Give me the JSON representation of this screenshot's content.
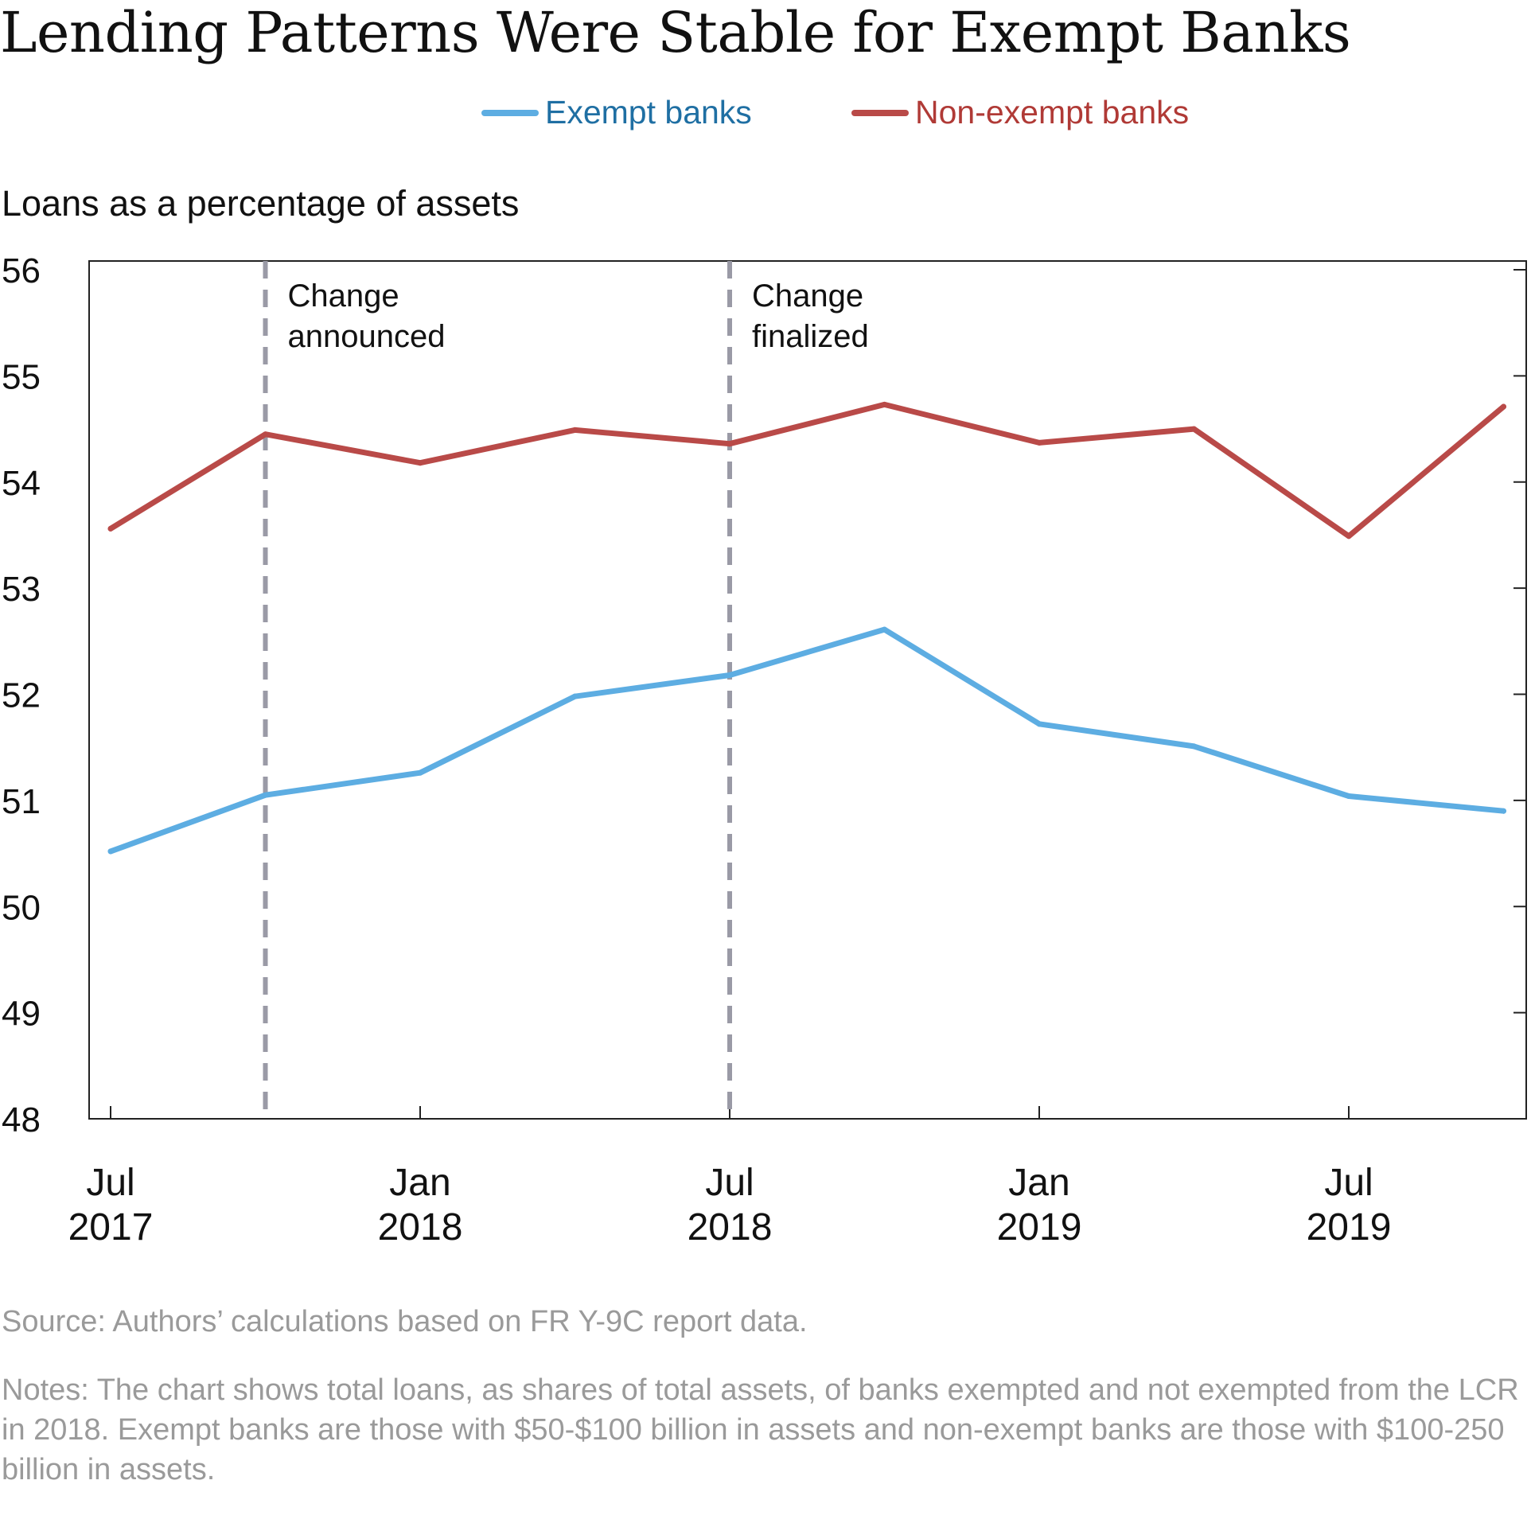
{
  "title": "Lending Patterns Were Stable for Exempt Banks",
  "source": "Source: Authors’ calculations based on FR Y-9C report data.",
  "notes": "Notes: The chart shows total loans, as shares of total assets, of banks exempted and not exempted from the LCR in 2018. Exempt banks are those with $50-$100 billion in assets and non-exempt banks are those with $100-250 billion in assets.",
  "chart_data": {
    "type": "line",
    "title": "Lending Patterns Were Stable for Exempt Banks",
    "ylabel": "Loans as a percentage of assets",
    "xlabel": "",
    "ylim": [
      48,
      56
    ],
    "yticks": [
      48,
      49,
      50,
      51,
      52,
      53,
      54,
      55,
      56
    ],
    "x": [
      "2017-Q3",
      "2017-Q4",
      "2018-Q1",
      "2018-Q2",
      "2018-Q3",
      "2018-Q4",
      "2019-Q1",
      "2019-Q2",
      "2019-Q3",
      "2019-Q4"
    ],
    "xtick_labels": [
      {
        "index": 0,
        "month": "Jul",
        "year": "2017"
      },
      {
        "index": 2,
        "month": "Jan",
        "year": "2018"
      },
      {
        "index": 4,
        "month": "Jul",
        "year": "2018"
      },
      {
        "index": 6,
        "month": "Jan",
        "year": "2019"
      },
      {
        "index": 8,
        "month": "Jul",
        "year": "2019"
      }
    ],
    "series": [
      {
        "name": "Exempt banks",
        "color": "#5dade2",
        "values": [
          50.52,
          51.05,
          51.26,
          51.98,
          52.18,
          52.61,
          51.72,
          51.51,
          51.04,
          50.9
        ]
      },
      {
        "name": "Non-exempt banks",
        "color": "#b94a48",
        "values": [
          53.56,
          54.45,
          54.18,
          54.49,
          54.36,
          54.73,
          54.37,
          54.5,
          53.49,
          54.71
        ]
      }
    ],
    "annotations": [
      {
        "index": 1,
        "line1": "Change",
        "line2": "announced"
      },
      {
        "index": 4,
        "line1": "Change",
        "line2": "finalized"
      }
    ],
    "legend_position": "top-center",
    "grid": false
  }
}
